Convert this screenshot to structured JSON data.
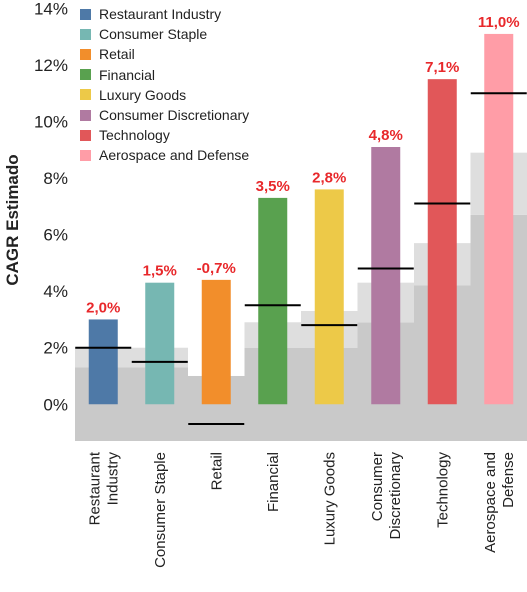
{
  "chart_data": {
    "type": "bar",
    "ylabel": "CAGR Estimado",
    "yticks": [
      "0%",
      "2%",
      "4%",
      "6%",
      "8%",
      "10%",
      "12%",
      "14%"
    ],
    "ylim": [
      -1.3,
      14.3
    ],
    "legend_position": "top-left",
    "categories": [
      "Restaurant Industry",
      "Consumer Staple",
      "Retail",
      "Financial",
      "Luxury Goods",
      "Consumer Discretionary",
      "Technology",
      "Aerospace and Defense"
    ],
    "category_lines": [
      [
        "Restaurant",
        "Industry"
      ],
      [
        "Consumer Staple"
      ],
      [
        "Retail"
      ],
      [
        "Financial"
      ],
      [
        "Luxury Goods"
      ],
      [
        "Consumer",
        "Discretionary"
      ],
      [
        "Technology"
      ],
      [
        "Aerospace and",
        "Defense"
      ]
    ],
    "bar_values": [
      3.0,
      4.3,
      4.4,
      7.3,
      7.6,
      9.1,
      11.5,
      13.1
    ],
    "marker_values": [
      2.0,
      1.5,
      -0.7,
      3.5,
      2.8,
      4.8,
      7.1,
      11.0
    ],
    "value_labels": [
      "2,0%",
      "1,5%",
      "-0,7%",
      "3,5%",
      "2,8%",
      "4,8%",
      "7,1%",
      "11,0%"
    ],
    "value_label_color": "#e8282b",
    "colors": [
      "#4e79a7",
      "#76b7b2",
      "#f28e2b",
      "#59a14f",
      "#edc948",
      "#b07aa1",
      "#e15759",
      "#ff9da7"
    ],
    "background_bands": [
      {
        "from": -1.3,
        "to": [
          1.3,
          1.3,
          1.0,
          2.0,
          2.0,
          2.9,
          4.2,
          6.7
        ],
        "color": "#c8c8c8"
      },
      {
        "from": [
          1.3,
          1.3,
          1.0,
          2.0,
          2.0,
          2.9,
          4.2,
          6.7
        ],
        "to": [
          2.0,
          2.0,
          -0.3,
          2.9,
          3.3,
          4.3,
          5.7,
          8.9
        ],
        "color": "#dddddd"
      },
      {
        "from": [
          2.0,
          2.0,
          -0.3,
          2.9,
          3.3,
          4.3,
          5.7,
          8.9
        ],
        "to": [
          2.0,
          2.0,
          -0.3,
          2.9,
          3.3,
          4.3,
          5.7,
          8.9
        ],
        "color": "#eeeeee"
      }
    ]
  }
}
